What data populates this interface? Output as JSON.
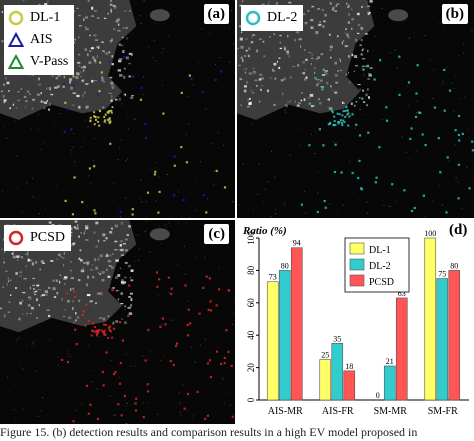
{
  "panels": [
    {
      "letter": "(a)",
      "legend": [
        {
          "label": "DL-1",
          "marker": "circle",
          "color": "#c8c846"
        },
        {
          "label": "AIS",
          "marker": "triangle",
          "color": "#1a1aa8"
        },
        {
          "label": "V-Pass",
          "marker": "triangle",
          "color": "#1d8c2a"
        }
      ]
    },
    {
      "letter": "(b)",
      "legend": [
        {
          "label": "DL-2",
          "marker": "circle",
          "color": "#2bbfbf"
        }
      ]
    },
    {
      "letter": "(c)",
      "legend": [
        {
          "label": "PCSD",
          "marker": "circle",
          "color": "#d42424"
        }
      ]
    }
  ],
  "chart_letter": "(d)",
  "caption": "Figure 15. (b) detection results and comparison results in a high EV model proposed in",
  "chart_data": {
    "type": "bar",
    "ylabel": "Ratio (%)",
    "ylim": [
      0,
      100
    ],
    "yticks": [
      0,
      20,
      40,
      60,
      80,
      100
    ],
    "categories": [
      "AIS-MR",
      "AIS-FR",
      "SM-MR",
      "SM-FR"
    ],
    "series": [
      {
        "name": "DL-1",
        "color": "#ffff66",
        "values": [
          73,
          25,
          0,
          100
        ]
      },
      {
        "name": "DL-2",
        "color": "#33cccc",
        "values": [
          80,
          35,
          21,
          75
        ]
      },
      {
        "name": "PCSD",
        "color": "#ff5555",
        "values": [
          94,
          18,
          63,
          80
        ]
      }
    ],
    "legend_position": "top-center"
  }
}
